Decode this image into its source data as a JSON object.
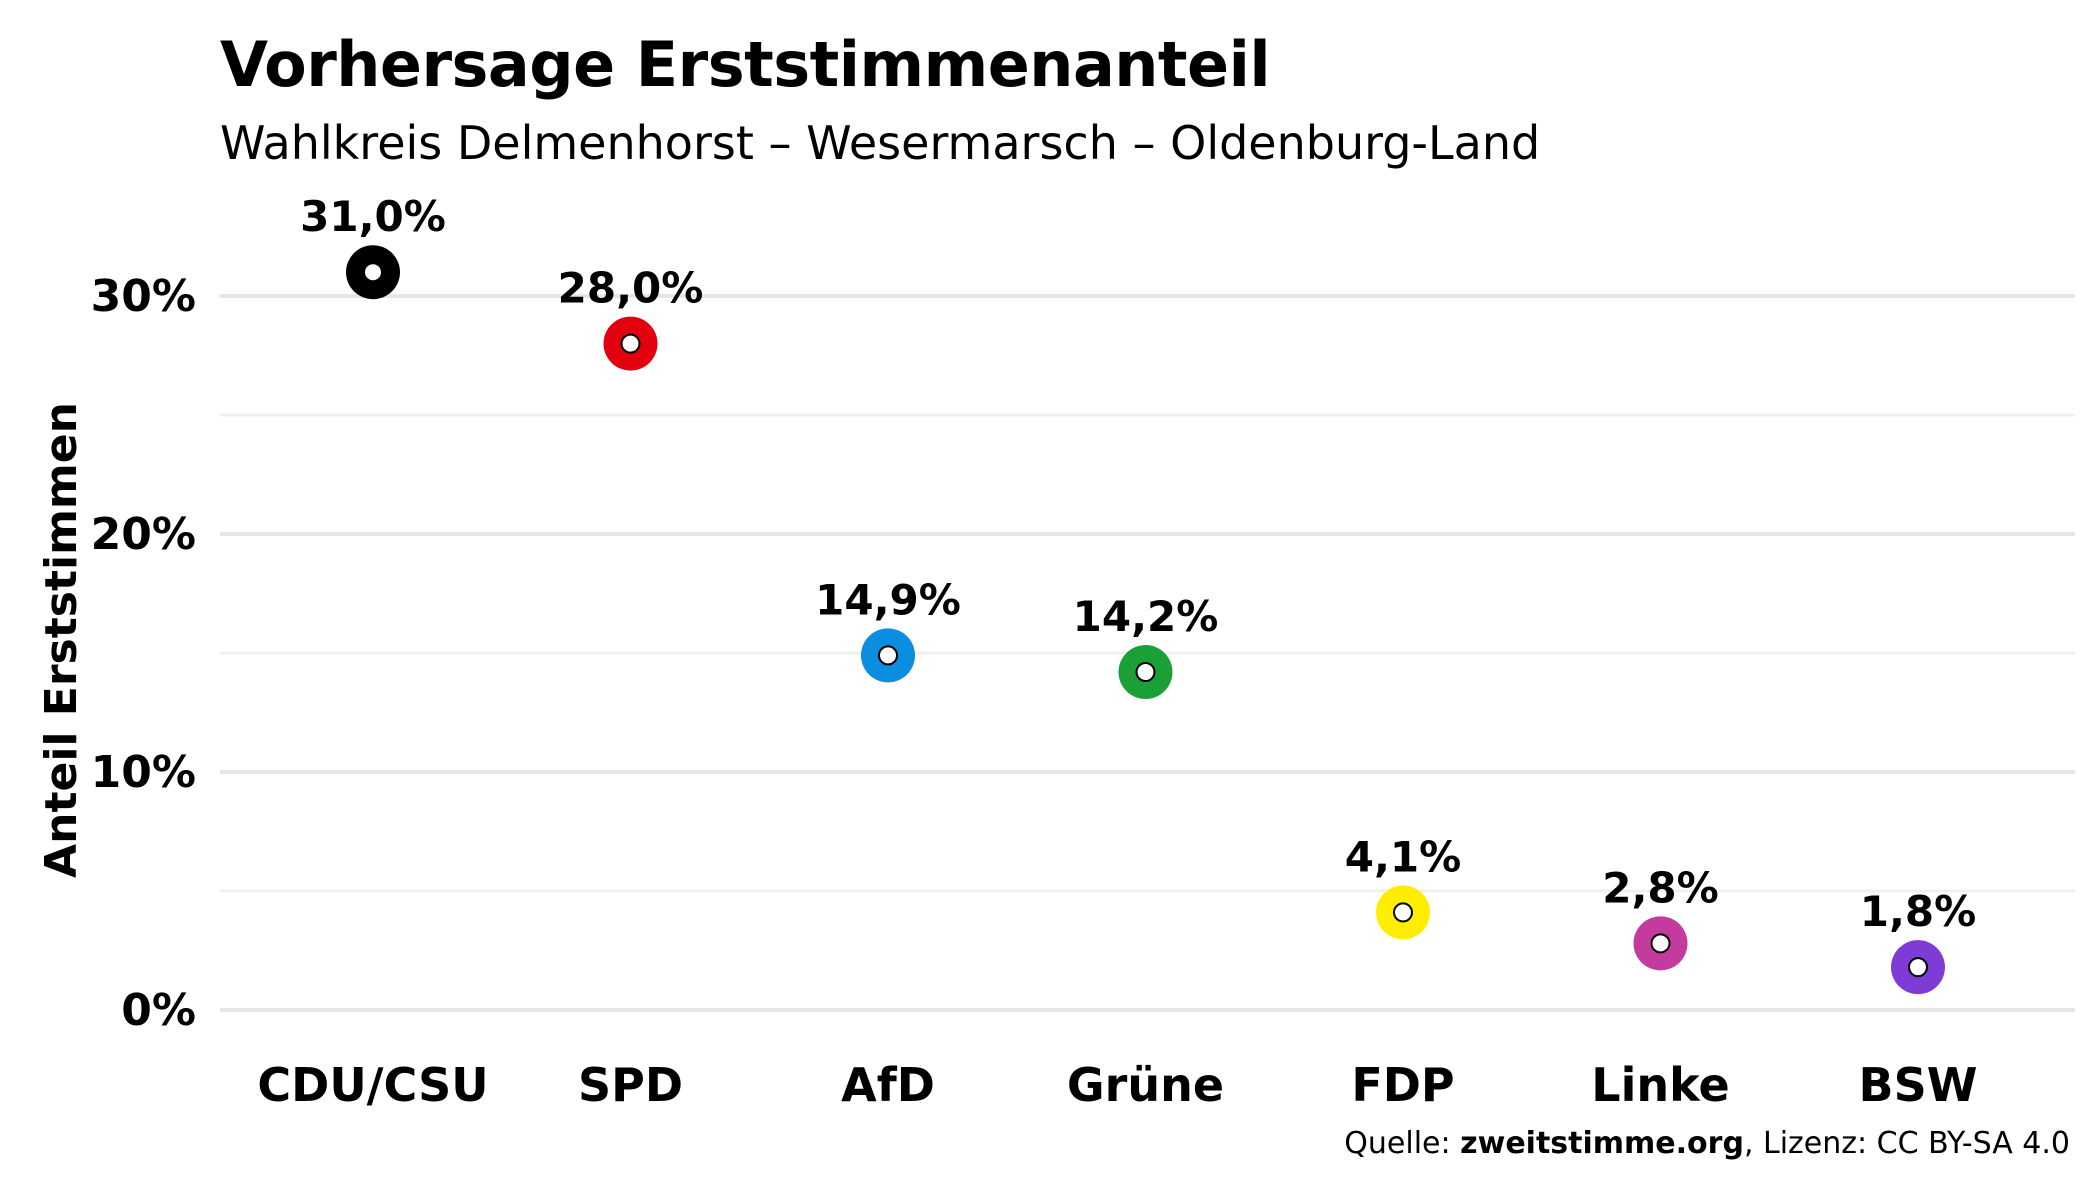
{
  "title": "Vorhersage Erststimmenanteil",
  "subtitle": "Wahlkreis Delmenhorst – Wesermarsch – Oldenburg-Land",
  "source": {
    "prefix": "Quelle: ",
    "site": "zweitstimme.org",
    "suffix": ", Lizenz: CC BY-SA 4.0"
  },
  "chart_data": {
    "type": "scatter",
    "title": "Vorhersage Erststimmenanteil",
    "subtitle": "Wahlkreis Delmenhorst – Wesermarsch – Oldenburg-Land",
    "xlabel": "",
    "ylabel": "Anteil Erststimmen",
    "ylim": [
      0,
      33
    ],
    "yticks": [
      0,
      10,
      20,
      30
    ],
    "ytick_labels": [
      "0%",
      "10%",
      "20%",
      "30%"
    ],
    "grid": true,
    "legend": "none",
    "categories": [
      "CDU/CSU",
      "SPD",
      "AfD",
      "Grüne",
      "FDP",
      "Linke",
      "BSW"
    ],
    "values": [
      31.0,
      28.0,
      14.9,
      14.2,
      4.1,
      2.8,
      1.8
    ],
    "value_labels": [
      "31,0%",
      "28,0%",
      "14,9%",
      "14,2%",
      "4,1%",
      "2,8%",
      "1,8%"
    ],
    "colors": [
      "#000000",
      "#e3000f",
      "#0a8fe0",
      "#1aa037",
      "#ffed00",
      "#c33b9c",
      "#7f3bd6"
    ]
  }
}
